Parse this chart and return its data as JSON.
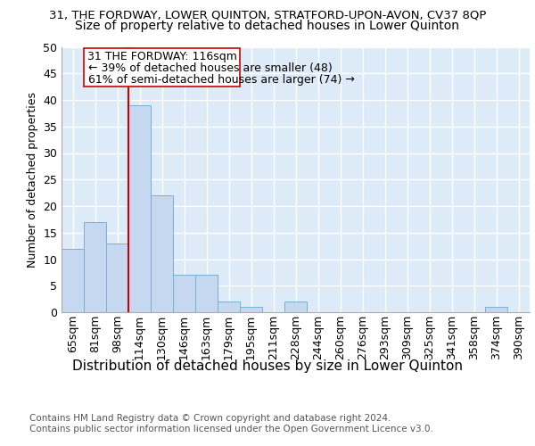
{
  "title1": "31, THE FORDWAY, LOWER QUINTON, STRATFORD-UPON-AVON, CV37 8QP",
  "title2": "Size of property relative to detached houses in Lower Quinton",
  "xlabel": "Distribution of detached houses by size in Lower Quinton",
  "ylabel": "Number of detached properties",
  "bins": [
    "65sqm",
    "81sqm",
    "98sqm",
    "114sqm",
    "130sqm",
    "146sqm",
    "163sqm",
    "179sqm",
    "195sqm",
    "211sqm",
    "228sqm",
    "244sqm",
    "260sqm",
    "276sqm",
    "293sqm",
    "309sqm",
    "325sqm",
    "341sqm",
    "358sqm",
    "374sqm",
    "390sqm"
  ],
  "values": [
    12,
    17,
    13,
    39,
    22,
    7,
    7,
    2,
    1,
    0,
    2,
    0,
    0,
    0,
    0,
    0,
    0,
    0,
    0,
    1,
    0
  ],
  "bar_color": "#c5d8ef",
  "bar_edge_color": "#7aafd4",
  "vline_color": "#cc0000",
  "ylim": [
    0,
    50
  ],
  "yticks": [
    0,
    5,
    10,
    15,
    20,
    25,
    30,
    35,
    40,
    45,
    50
  ],
  "annotation_title": "31 THE FORDWAY: 116sqm",
  "annotation_line1": "← 39% of detached houses are smaller (48)",
  "annotation_line2": "61% of semi-detached houses are larger (74) →",
  "annotation_box_color": "#ffffff",
  "annotation_box_edge": "#cc0000",
  "footer1": "Contains HM Land Registry data © Crown copyright and database right 2024.",
  "footer2": "Contains public sector information licensed under the Open Government Licence v3.0.",
  "bg_color": "#ddeaf7",
  "grid_color": "#ffffff",
  "title1_fontsize": 9.5,
  "title2_fontsize": 10,
  "xlabel_fontsize": 11,
  "ylabel_fontsize": 9,
  "tick_fontsize": 9,
  "footer_fontsize": 7.5,
  "ann_fontsize_title": 9,
  "ann_fontsize_lines": 9
}
